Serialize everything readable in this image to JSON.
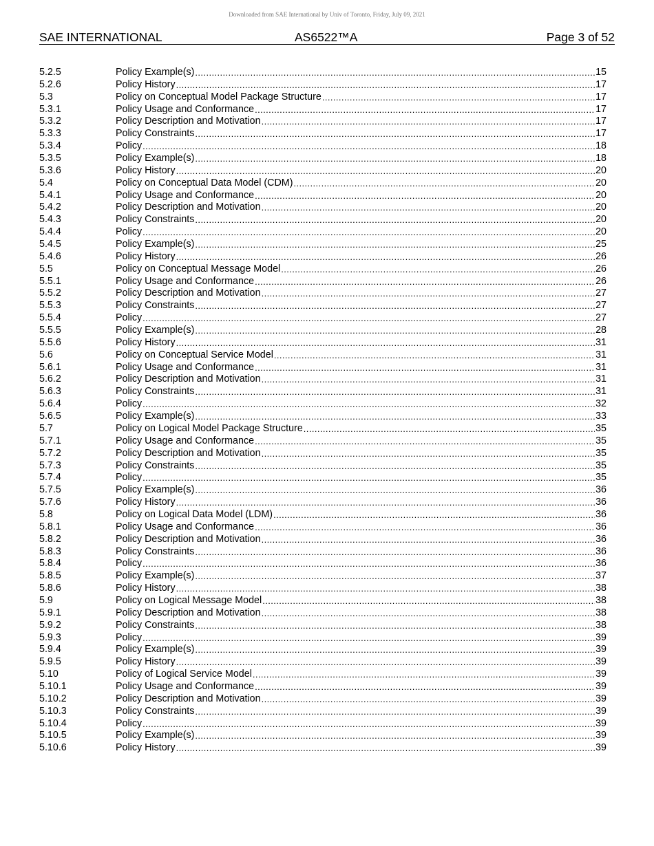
{
  "watermark": "Downloaded from SAE International by Univ of Toronto, Friday, July 09, 2021",
  "header": {
    "left": "SAE INTERNATIONAL",
    "center": "AS6522™A",
    "right": "Page 3 of 52"
  },
  "toc": [
    {
      "num": "5.2.5",
      "title": "Policy Example(s)",
      "page": "15"
    },
    {
      "num": "5.2.6",
      "title": "Policy History",
      "page": "17"
    },
    {
      "num": "5.3",
      "title": "Policy on Conceptual Model Package Structure",
      "page": "17"
    },
    {
      "num": "5.3.1",
      "title": "Policy Usage and Conformance",
      "page": "17"
    },
    {
      "num": "5.3.2",
      "title": "Policy Description and Motivation",
      "page": "17"
    },
    {
      "num": "5.3.3",
      "title": "Policy Constraints",
      "page": "17"
    },
    {
      "num": "5.3.4",
      "title": "Policy",
      "page": "18"
    },
    {
      "num": "5.3.5",
      "title": "Policy Example(s)",
      "page": "18"
    },
    {
      "num": "5.3.6",
      "title": "Policy History",
      "page": "20"
    },
    {
      "num": "5.4",
      "title": "Policy on Conceptual Data Model (CDM)",
      "page": "20"
    },
    {
      "num": "5.4.1",
      "title": "Policy Usage and Conformance",
      "page": "20"
    },
    {
      "num": "5.4.2",
      "title": "Policy Description and Motivation",
      "page": "20"
    },
    {
      "num": "5.4.3",
      "title": "Policy Constraints",
      "page": "20"
    },
    {
      "num": "5.4.4",
      "title": "Policy",
      "page": "20"
    },
    {
      "num": "5.4.5",
      "title": "Policy Example(s)",
      "page": "25"
    },
    {
      "num": "5.4.6",
      "title": "Policy History",
      "page": "26"
    },
    {
      "num": "5.5",
      "title": "Policy on Conceptual Message Model",
      "page": "26"
    },
    {
      "num": "5.5.1",
      "title": "Policy Usage and Conformance",
      "page": "26"
    },
    {
      "num": "5.5.2",
      "title": "Policy Description and Motivation",
      "page": "27"
    },
    {
      "num": "5.5.3",
      "title": "Policy Constraints",
      "page": "27"
    },
    {
      "num": "5.5.4",
      "title": "Policy",
      "page": "27"
    },
    {
      "num": "5.5.5",
      "title": "Policy Example(s)",
      "page": "28"
    },
    {
      "num": "5.5.6",
      "title": "Policy History",
      "page": "31"
    },
    {
      "num": "5.6",
      "title": "Policy on Conceptual Service Model",
      "page": "31"
    },
    {
      "num": "5.6.1",
      "title": "Policy Usage and Conformance",
      "page": "31"
    },
    {
      "num": "5.6.2",
      "title": "Policy Description and Motivation",
      "page": "31"
    },
    {
      "num": "5.6.3",
      "title": "Policy Constraints",
      "page": "31"
    },
    {
      "num": "5.6.4",
      "title": "Policy",
      "page": "32"
    },
    {
      "num": "5.6.5",
      "title": "Policy Example(s)",
      "page": "33"
    },
    {
      "num": "5.7",
      "title": "Policy on Logical Model Package Structure",
      "page": "35"
    },
    {
      "num": "5.7.1",
      "title": "Policy Usage and Conformance",
      "page": "35"
    },
    {
      "num": "5.7.2",
      "title": "Policy Description and Motivation",
      "page": "35"
    },
    {
      "num": "5.7.3",
      "title": "Policy Constraints",
      "page": "35"
    },
    {
      "num": "5.7.4",
      "title": "Policy",
      "page": "35"
    },
    {
      "num": "5.7.5",
      "title": "Policy Example(s)",
      "page": "36"
    },
    {
      "num": "5.7.6",
      "title": "Policy History",
      "page": "36"
    },
    {
      "num": "5.8",
      "title": "Policy on Logical Data Model (LDM)",
      "page": "36"
    },
    {
      "num": "5.8.1",
      "title": "Policy Usage and Conformance",
      "page": "36"
    },
    {
      "num": "5.8.2",
      "title": "Policy Description and Motivation",
      "page": "36"
    },
    {
      "num": "5.8.3",
      "title": "Policy Constraints",
      "page": "36"
    },
    {
      "num": "5.8.4",
      "title": "Policy",
      "page": "36"
    },
    {
      "num": "5.8.5",
      "title": "Policy Example(s)",
      "page": "37"
    },
    {
      "num": "5.8.6",
      "title": "Policy History",
      "page": "38"
    },
    {
      "num": "5.9",
      "title": "Policy on Logical Message Model",
      "page": "38"
    },
    {
      "num": "5.9.1",
      "title": "Policy Description and Motivation",
      "page": "38"
    },
    {
      "num": "5.9.2",
      "title": "Policy Constraints",
      "page": "38"
    },
    {
      "num": "5.9.3",
      "title": "Policy",
      "page": "39"
    },
    {
      "num": "5.9.4",
      "title": "Policy Example(s)",
      "page": "39"
    },
    {
      "num": "5.9.5",
      "title": "Policy History",
      "page": "39"
    },
    {
      "num": "5.10",
      "title": "Policy of Logical Service Model",
      "page": "39"
    },
    {
      "num": "5.10.1",
      "title": "Policy Usage and Conformance",
      "page": "39"
    },
    {
      "num": "5.10.2",
      "title": "Policy Description and Motivation",
      "page": "39"
    },
    {
      "num": "5.10.3",
      "title": "Policy Constraints",
      "page": "39"
    },
    {
      "num": "5.10.4",
      "title": "Policy",
      "page": "39"
    },
    {
      "num": "5.10.5",
      "title": "Policy Example(s)",
      "page": "39"
    },
    {
      "num": "5.10.6",
      "title": "Policy History",
      "page": "39"
    }
  ]
}
